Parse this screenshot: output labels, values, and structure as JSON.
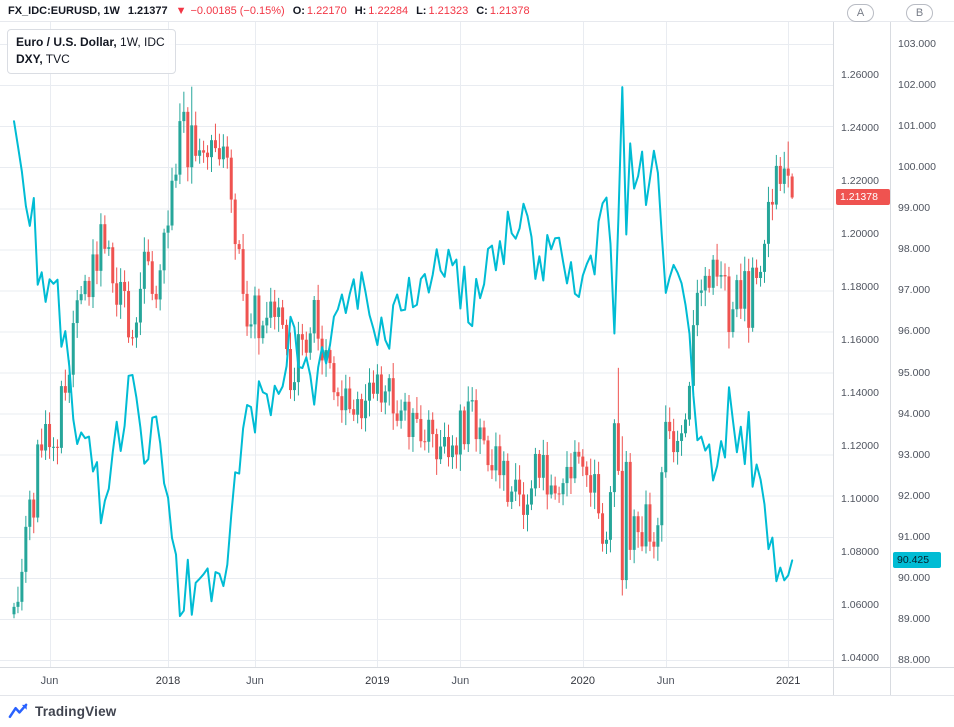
{
  "topbar": {
    "symbol": "FX_IDC:EURUSD, 1W",
    "last_price": "1.21377",
    "direction_icon": "▼",
    "change": "−0.00185 (−0.15%)",
    "ohlc": [
      {
        "label": "O:",
        "value": "1.22170"
      },
      {
        "label": "H:",
        "value": "1.22284"
      },
      {
        "label": "L:",
        "value": "1.21323"
      },
      {
        "label": "C:",
        "value": "1.21378"
      }
    ]
  },
  "legend": {
    "line1_symbol": "Euro / U.S. Dollar,",
    "line1_meta": " 1W, IDC",
    "line2_symbol": "DXY,",
    "line2_meta": " TVC"
  },
  "axes": {
    "eurusd_labels": [
      "1.26000",
      "1.24000",
      "1.22000",
      "1.20000",
      "1.18000",
      "1.16000",
      "1.14000",
      "1.12000",
      "1.10000",
      "1.08000",
      "1.06000",
      "1.04000"
    ],
    "dxy_labels": [
      "103.000",
      "102.000",
      "101.000",
      "100.000",
      "99.000",
      "98.000",
      "97.000",
      "96.000",
      "95.000",
      "94.000",
      "93.000",
      "92.000",
      "91.000",
      "90.000",
      "89.000",
      "88.000"
    ],
    "eur_badge": "1.21378",
    "dxy_badge": "90.425",
    "a_button": "A",
    "b_button": "B"
  },
  "time_axis": {
    "ticks": [
      {
        "i": 9,
        "label": "Jun"
      },
      {
        "i": 39,
        "label": "2018"
      },
      {
        "i": 61,
        "label": "Jun"
      },
      {
        "i": 92,
        "label": "2019"
      },
      {
        "i": 113,
        "label": "Jun"
      },
      {
        "i": 144,
        "label": "2020"
      },
      {
        "i": 165,
        "label": "Jun"
      },
      {
        "i": 196,
        "label": "2021"
      }
    ]
  },
  "footer": {
    "logo_text": "TradingView"
  },
  "colors": {
    "up": "#26a69a",
    "down": "#ef5350",
    "dxy_line": "#00bcd4",
    "grid": "#e9ecf1",
    "eur_badge_bg": "#ef5350",
    "dxy_badge_bg": "#00bcd4",
    "topbar_red": "#f23645",
    "logo_blue": "#2962ff"
  },
  "chart_data": {
    "type": "candlestick+line",
    "title": "Euro / U.S. Dollar, 1W, IDC with DXY, TVC overlay",
    "weeks": 198,
    "x_span": "Apr 2017 – Jan 2021, weekly",
    "eur_axis": {
      "min": 1.04,
      "max": 1.26,
      "tick_step": 0.02
    },
    "dxy_axis": {
      "min": 88,
      "max": 103,
      "tick_step": 1
    },
    "eurusd_first_open": 1.0565,
    "eurusd_close": [
      1.0593,
      1.0612,
      1.0725,
      1.0895,
      1.0998,
      1.093,
      1.1206,
      1.1183,
      1.1283,
      1.1196,
      1.1197,
      1.1193,
      1.1426,
      1.1401,
      1.1469,
      1.1664,
      1.175,
      1.1773,
      1.1823,
      1.1762,
      1.1923,
      1.1861,
      1.2037,
      1.1944,
      1.195,
      1.1814,
      1.1733,
      1.1819,
      1.1785,
      1.161,
      1.1609,
      1.1666,
      1.1793,
      1.1933,
      1.1897,
      1.1774,
      1.1753,
      1.1863,
      1.2005,
      1.2032,
      1.2201,
      1.2224,
      1.2426,
      1.2461,
      1.2252,
      1.241,
      1.2295,
      1.2316,
      1.2307,
      1.229,
      1.2354,
      1.2324,
      1.2282,
      1.233,
      1.2288,
      1.213,
      1.1962,
      1.1943,
      1.1774,
      1.1651,
      1.1659,
      1.1768,
      1.1607,
      1.1655,
      1.1684,
      1.1745,
      1.1687,
      1.1723,
      1.1657,
      1.1566,
      1.1411,
      1.1441,
      1.1622,
      1.1601,
      1.1552,
      1.1625,
      1.1751,
      1.1605,
      1.1523,
      1.1562,
      1.1513,
      1.1403,
      1.1388,
      1.1335,
      1.1417,
      1.1339,
      1.1318,
      1.1377,
      1.1305,
      1.1371,
      1.1439,
      1.1397,
      1.147,
      1.1364,
      1.1406,
      1.1456,
      1.1323,
      1.1295,
      1.1334,
      1.1367,
      1.1234,
      1.1325,
      1.1302,
      1.1218,
      1.1216,
      1.1299,
      1.1245,
      1.115,
      1.1198,
      1.1234,
      1.1158,
      1.1202,
      1.1168,
      1.1334,
      1.1207,
      1.1368,
      1.1373,
      1.1226,
      1.127,
      1.1221,
      1.1128,
      1.1108,
      1.1199,
      1.109,
      1.1144,
      1.0989,
      1.1028,
      1.1073,
      1.1017,
      1.094,
      1.0979,
      1.104,
      1.117,
      1.108,
      1.1166,
      1.1017,
      1.1051,
      1.1021,
      1.1018,
      1.106,
      1.1121,
      1.1078,
      1.1178,
      1.116,
      1.1122,
      1.109,
      1.1024,
      1.1094,
      1.0946,
      1.0831,
      1.0846,
      1.1026,
      1.1286,
      1.1106,
      1.0694,
      1.114,
      1.0808,
      1.0935,
      1.0875,
      1.0821,
      1.098,
      1.0839,
      1.082,
      1.0901,
      1.1101,
      1.1291,
      1.1256,
      1.1177,
      1.1219,
      1.1248,
      1.13,
      1.1427,
      1.1656,
      1.1778,
      1.1787,
      1.1842,
      1.1797,
      1.1903,
      1.1839,
      1.1845,
      1.184,
      1.163,
      1.1716,
      1.1826,
      1.1718,
      1.186,
      1.1646,
      1.1873,
      1.1834,
      1.1857,
      1.1963,
      1.2121,
      1.2111,
      1.2257,
      1.2189,
      1.2247,
      1.222,
      1.21378
    ],
    "candle_overrides": {
      "42": {
        "h": 1.2493
      },
      "43": {
        "h": 1.2537
      },
      "45": {
        "h": 1.2556
      },
      "153": {
        "h": 1.1495
      },
      "154": {
        "h": 1.1237,
        "l": 1.0636
      },
      "156": {
        "l": 1.077
      },
      "195": {
        "h": 1.231
      },
      "196": {
        "h": 1.2349
      },
      "197": {
        "o": 1.2217,
        "h": 1.22284,
        "l": 1.21323,
        "c": 1.21378
      }
    },
    "dxy_close": [
      101.12,
      100.52,
      99.89,
      99.05,
      98.57,
      99.25,
      97.14,
      97.44,
      96.72,
      97.27,
      97.16,
      97.26,
      95.63,
      96.01,
      95.15,
      93.86,
      93.26,
      93.54,
      93.4,
      93.44,
      92.59,
      92.82,
      91.33,
      91.88,
      92.17,
      93.07,
      93.8,
      93.09,
      93.7,
      94.92,
      94.94,
      94.39,
      93.66,
      92.78,
      92.89,
      93.9,
      93.93,
      93.28,
      92.3,
      91.95,
      90.97,
      90.57,
      89.07,
      89.2,
      90.44,
      89.1,
      89.88,
      89.98,
      90.09,
      90.23,
      89.43,
      90.14,
      90.1,
      89.8,
      90.32,
      91.54,
      92.57,
      92.54,
      93.64,
      94.21,
      94.16,
      93.54,
      94.79,
      94.52,
      94.47,
      93.96,
      94.68,
      94.48,
      94.66,
      95.16,
      96.36,
      96.1,
      95.14,
      95.11,
      95.37,
      94.93,
      94.22,
      95.13,
      95.62,
      95.22,
      95.67,
      96.36,
      96.54,
      96.9,
      96.45,
      96.92,
      97.27,
      96.55,
      97.44,
      96.95,
      96.4,
      96.07,
      95.67,
      96.34,
      95.79,
      95.58,
      96.64,
      96.9,
      96.51,
      96.53,
      97.31,
      96.59,
      96.65,
      97.28,
      97.4,
      96.95,
      97.38,
      98.0,
      97.48,
      97.33,
      97.99,
      97.61,
      97.75,
      96.56,
      97.58,
      96.22,
      96.13,
      97.28,
      96.81,
      97.15,
      98.01,
      98.09,
      97.49,
      98.2,
      97.64,
      98.92,
      98.39,
      98.26,
      98.51,
      99.11,
      98.81,
      98.3,
      97.28,
      97.83,
      97.24,
      98.35,
      98.0,
      98.27,
      98.28,
      97.7,
      97.17,
      97.69,
      96.92,
      96.84,
      97.36,
      97.64,
      97.85,
      97.39,
      98.68,
      99.12,
      99.26,
      98.13,
      95.95,
      98.75,
      101.95,
      98.36,
      100.58,
      99.48,
      99.78,
      100.38,
      99.08,
      99.73,
      100.4,
      99.86,
      98.34,
      96.94,
      97.32,
      97.62,
      97.43,
      97.17,
      96.65,
      95.94,
      94.44,
      93.35,
      93.44,
      93.1,
      93.25,
      92.37,
      92.72,
      93.33,
      92.93,
      94.64,
      93.84,
      93.06,
      93.68,
      92.77,
      94.04,
      92.22,
      92.76,
      92.39,
      91.79,
      90.7,
      90.98,
      89.92,
      90.25,
      89.94,
      90.06,
      90.425
    ],
    "last_values": {
      "eurusd": 1.21378,
      "dxy": 90.425
    }
  }
}
